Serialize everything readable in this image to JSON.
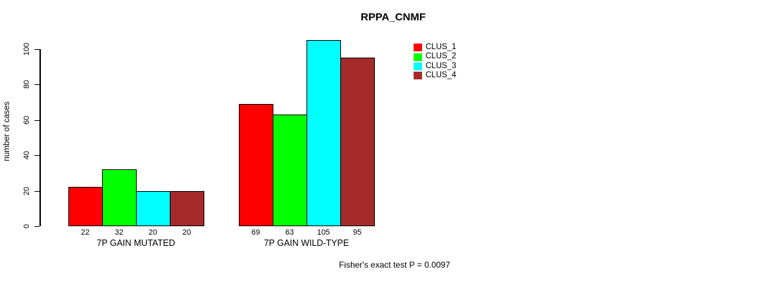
{
  "chart_data": {
    "type": "bar",
    "title": "RPPA_CNMF",
    "ylabel": "number of cases",
    "xlabel": "",
    "ylim": [
      0,
      105
    ],
    "yticks": [
      0,
      20,
      40,
      60,
      80,
      100
    ],
    "categories": [
      "7P GAIN MUTATED",
      "7P GAIN WILD-TYPE"
    ],
    "series": [
      {
        "name": "CLUS_1",
        "color": "#ff0000",
        "values": [
          22,
          69
        ]
      },
      {
        "name": "CLUS_2",
        "color": "#00ff00",
        "values": [
          32,
          63
        ]
      },
      {
        "name": "CLUS_3",
        "color": "#00ffff",
        "values": [
          20,
          105
        ]
      },
      {
        "name": "CLUS_4",
        "color": "#a52a2a",
        "values": [
          20,
          95
        ]
      }
    ],
    "bar_labels_shown": true,
    "annotation": "Fisher's exact test P = 0.0097",
    "legend_position": "top-right",
    "grid": false,
    "axis_color": "#000000",
    "background": "#ffffff"
  }
}
